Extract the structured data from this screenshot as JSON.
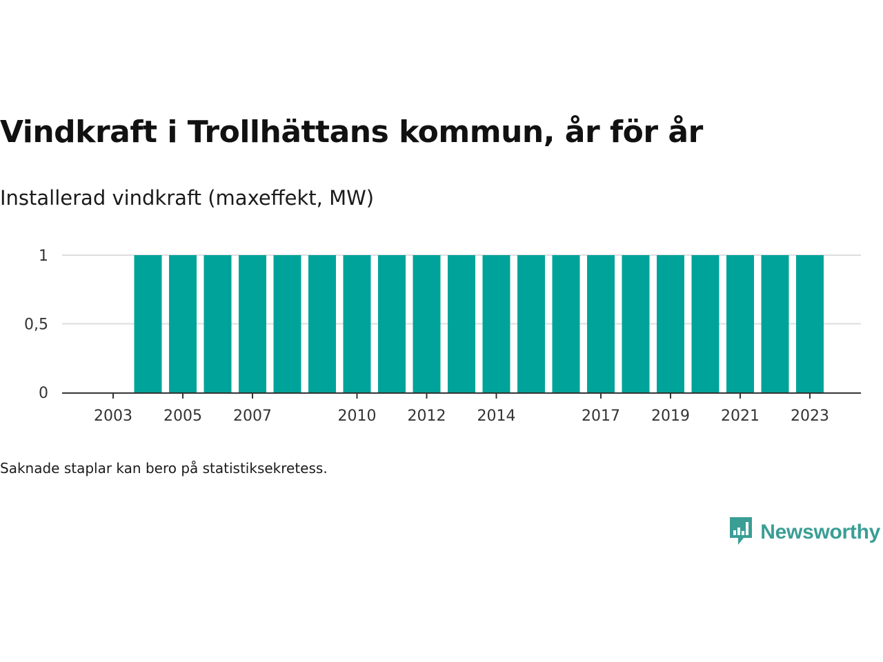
{
  "title": "Vindkraft i Trollhättans kommun, år för år",
  "subtitle": "Installerad vindkraft (maxeffekt, MW)",
  "footnote": "Saknade staplar kan bero på statistiksekretess.",
  "brand": {
    "name": "Newsworthy",
    "icon": "newsworthy-logo-icon",
    "color": "#3a9e95"
  },
  "chart_data": {
    "type": "bar",
    "categories": [
      2003,
      2004,
      2005,
      2006,
      2007,
      2008,
      2009,
      2010,
      2011,
      2012,
      2013,
      2014,
      2015,
      2016,
      2017,
      2018,
      2019,
      2020,
      2021,
      2022,
      2023
    ],
    "values": [
      null,
      1,
      1,
      1,
      1,
      1,
      1,
      1,
      1,
      1,
      1,
      1,
      1,
      1,
      1,
      1,
      1,
      1,
      1,
      1,
      1
    ],
    "x_tick_labels": [
      "2003",
      "2005",
      "2007",
      "2010",
      "2012",
      "2014",
      "2017",
      "2019",
      "2021",
      "2023"
    ],
    "y_ticks": [
      0,
      0.5,
      1
    ],
    "y_tick_labels": [
      "0",
      "0,5",
      "1"
    ],
    "ylim": [
      0,
      1
    ],
    "grid": true,
    "bar_color": "#00a39a",
    "title": "",
    "xlabel": "",
    "ylabel": ""
  }
}
